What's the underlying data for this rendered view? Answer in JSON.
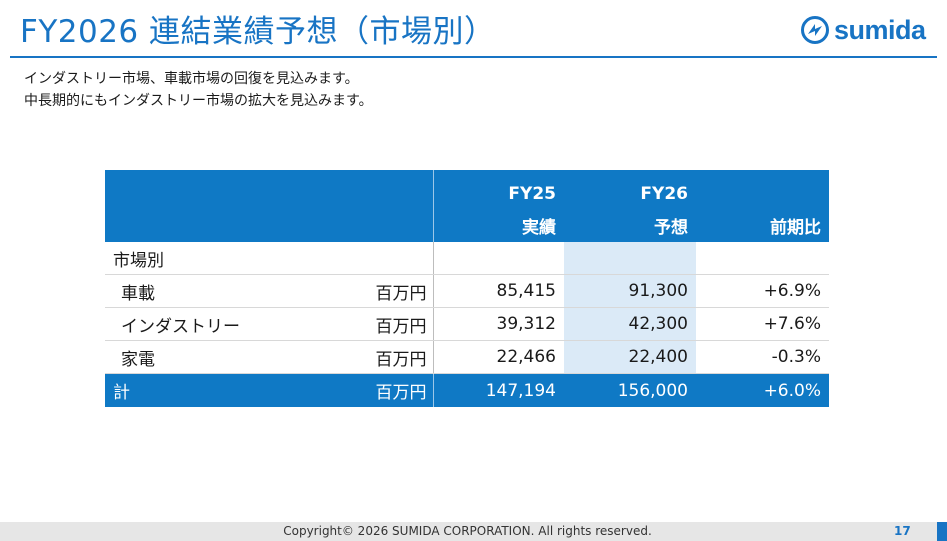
{
  "slide": {
    "title": "FY2026 連結業績予想（市場別）",
    "logo_text": "sumida",
    "intro_lines": [
      "インダストリー市場、車載市場の回復を見込みます。",
      "中長期的にもインダストリー市場の拡大を見込みます。"
    ]
  },
  "table": {
    "header": {
      "fy25": "FY25",
      "fy25_sub": "実績",
      "fy26": "FY26",
      "fy26_sub": "予想",
      "change": "前期比"
    },
    "section_label": "市場別",
    "rows": [
      {
        "label": "車載",
        "unit": "百万円",
        "fy25": "85,415",
        "fy26": "91,300",
        "change": "+6.9%"
      },
      {
        "label": "インダストリー",
        "unit": "百万円",
        "fy25": "39,312",
        "fy26": "42,300",
        "change": "+7.6%"
      },
      {
        "label": "家電",
        "unit": "百万円",
        "fy25": "22,466",
        "fy26": "22,400",
        "change": "-0.3%"
      }
    ],
    "total": {
      "label": "計",
      "unit": "百万円",
      "fy25": "147,194",
      "fy26": "156,000",
      "change": "+6.0%"
    }
  },
  "footer": {
    "copyright": "Copyright© 2026 SUMIDA CORPORATION. All rights reserved.",
    "page_number": "17"
  },
  "colors": {
    "brand_blue": "#1874c4",
    "header_blue": "#0f79c5",
    "forecast_shade": "#dbeaf7"
  }
}
